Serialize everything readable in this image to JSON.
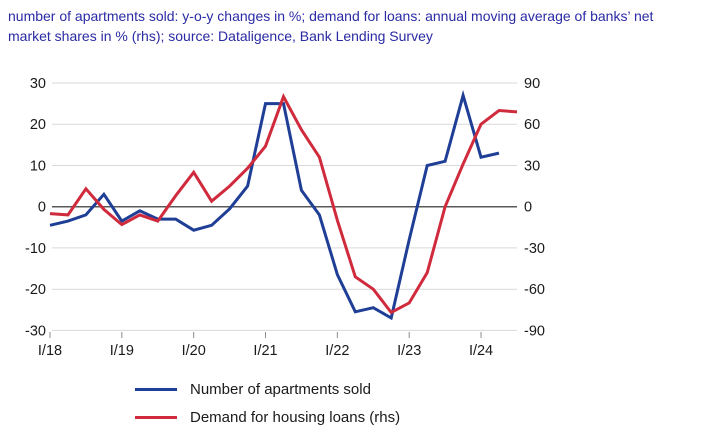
{
  "title": {
    "line1": "number of apartments sold: y-o-y changes in %; demand for loans: annual moving average of banks’ net",
    "line2": "market shares in % (rhs); source: Dataligence, Bank Lending Survey"
  },
  "legend": [
    {
      "label": "Number of apartments sold",
      "color": "#1f3e96"
    },
    {
      "label": "Demand for housing loans (rhs)",
      "color": "#d02b3d"
    }
  ],
  "colors": {
    "title_text": "#2a2aa5",
    "axis_text": "#1a1a1a",
    "gridline": "#d9d9d9",
    "zero_line": "#595959",
    "tick_mark": "#8c8c8c",
    "apartments_line": "#1f3e96",
    "loans_line": "#d02b3d"
  },
  "chart_data": {
    "type": "line",
    "title": "number of apartments sold: y-o-y changes in %; demand for loans: annual moving average of banks’ net market shares in % (rhs); source: Dataligence, Bank Lending Survey",
    "grid": true,
    "legend_position": "bottom",
    "x_tick_labels": [
      "I/18",
      "I/19",
      "I/20",
      "I/21",
      "I/22",
      "I/23",
      "I/24"
    ],
    "left_axis": {
      "ticks": [
        30,
        20,
        10,
        0,
        -10,
        -20,
        -30
      ],
      "range": [
        -30,
        30
      ],
      "label": "y-o-y changes in %"
    },
    "right_axis": {
      "ticks": [
        90,
        60,
        30,
        0,
        -30,
        -60,
        -90
      ],
      "range": [
        -90,
        90
      ],
      "label": "net market shares in % (rhs)"
    },
    "categories": [
      "I/18",
      "II/18",
      "III/18",
      "IV/18",
      "I/19",
      "II/19",
      "III/19",
      "IV/19",
      "I/20",
      "II/20",
      "III/20",
      "IV/20",
      "I/21",
      "II/21",
      "III/21",
      "IV/21",
      "I/22",
      "II/22",
      "III/22",
      "IV/22",
      "I/23",
      "II/23",
      "III/23",
      "IV/23",
      "I/24",
      "II/24",
      "III/24"
    ],
    "series": [
      {
        "name": "Number of apartments sold",
        "axis": "left",
        "color": "#1f3e96",
        "values": [
          -4.5,
          -3.5,
          -2,
          3,
          -3.5,
          -1,
          -3,
          -3,
          -5.7,
          -4.5,
          -0.5,
          5,
          25,
          25,
          4,
          -2,
          -16.5,
          -25.5,
          -24.5,
          -27,
          -8,
          10,
          11,
          27,
          12,
          13,
          null
        ]
      },
      {
        "name": "Demand for housing loans (rhs)",
        "axis": "right",
        "color": "#d02b3d",
        "values": [
          -5,
          -6,
          13,
          -2,
          -13,
          -6,
          -10.5,
          8,
          25,
          4,
          15,
          28,
          44,
          80,
          56,
          36,
          -10,
          -51,
          -60,
          -77,
          -70,
          -48,
          0,
          31,
          60,
          70,
          69
        ]
      }
    ]
  }
}
